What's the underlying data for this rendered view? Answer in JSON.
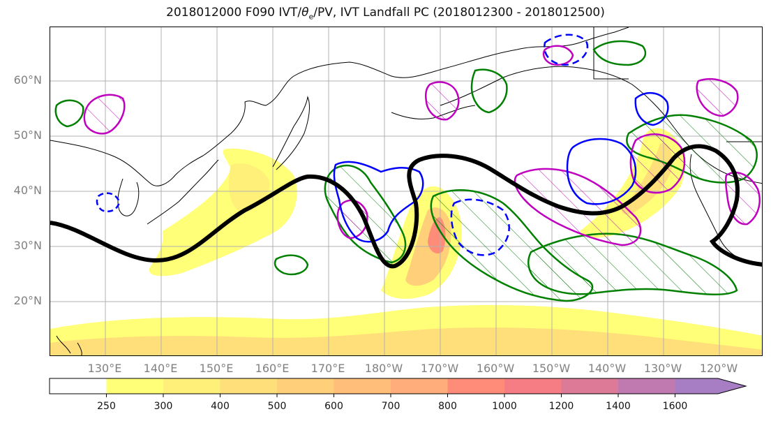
{
  "title_main": "2018012000 F090 IVT/",
  "title_theta": "θ",
  "title_sub": "e",
  "title_rest": "/PV, IVT Landfall PC (2018012300 - 2018012500)",
  "lat_labels": [
    "60°N",
    "50°N",
    "40°N",
    "30°N",
    "20°N"
  ],
  "lon_labels": [
    "130°E",
    "140°E",
    "150°E",
    "160°E",
    "170°E",
    "180°W",
    "170°W",
    "160°W",
    "150°W",
    "140°W",
    "130°W",
    "120°W"
  ],
  "colorbar": {
    "levels": [
      250,
      300,
      400,
      500,
      600,
      700,
      800,
      1000,
      1200,
      1400,
      1600
    ],
    "labels": [
      "250",
      "300",
      "400",
      "500",
      "600",
      "700",
      "800",
      "1000",
      "1200",
      "1400",
      "1600"
    ],
    "colors": [
      "#ffff78",
      "#fff07a",
      "#ffdf7a",
      "#ffcf7a",
      "#ffbe7a",
      "#ffad7a",
      "#ff8c78",
      "#f77d84",
      "#dd7a98",
      "#c07ab0",
      "#a77dc3"
    ],
    "extend": "max"
  },
  "legend_colors": {
    "jet_contour": "#000000",
    "green_contour": "#008000",
    "magenta_contour": "#bf00bf",
    "blue_contour": "#0000ff"
  }
}
